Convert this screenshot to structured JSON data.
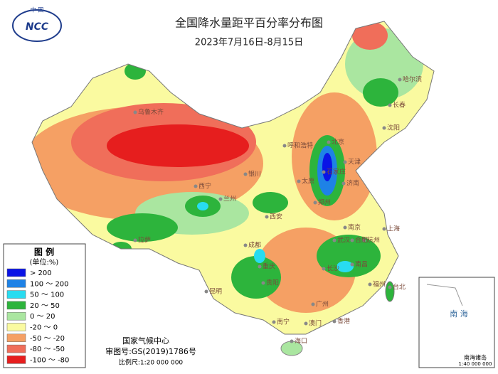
{
  "header": {
    "logo": "NCC",
    "logo_top": "中 国",
    "title": "全国降水量距平百分率分布图",
    "subtitle": "2023年7月16日-8月15日"
  },
  "legend": {
    "title": "图 例",
    "unit": "(单位:%)",
    "items": [
      {
        "label": "> 200",
        "color": "#0a14e6"
      },
      {
        "label": "100 ～ 200",
        "color": "#1e82e6"
      },
      {
        "label": "50 ～ 100",
        "color": "#28dcf0"
      },
      {
        "label": "20 ～ 50",
        "color": "#2db43c"
      },
      {
        "label": "0 ～ 20",
        "color": "#aae6a0"
      },
      {
        "label": "-20 ～ 0",
        "color": "#fafaa0"
      },
      {
        "label": "-50 ～ -20",
        "color": "#f5a064"
      },
      {
        "label": "-80 ～ -50",
        "color": "#f06e5a"
      },
      {
        "label": "-100 ～ -80",
        "color": "#e61e1e"
      }
    ]
  },
  "footer": {
    "agency": "国家气候中心",
    "approval": "审图号:GS(2019)1786号",
    "scale": "比例尺:1:20 000 000"
  },
  "inset": {
    "sea": "南 海",
    "islands": "南海诸岛",
    "scale": "1:40 000 000"
  },
  "cities": [
    "乌鲁木齐",
    "拉萨",
    "西宁",
    "兰州",
    "银川",
    "呼和浩特",
    "北京",
    "天津",
    "石家庄",
    "太原",
    "济南",
    "郑州",
    "西安",
    "成都",
    "重庆",
    "贵阳",
    "昆明",
    "南宁",
    "广州",
    "海口",
    "长沙",
    "武汉",
    "南昌",
    "福州",
    "台北",
    "杭州",
    "上海",
    "南京",
    "合肥",
    "沈阳",
    "长春",
    "哈尔滨",
    "香港",
    "澳门"
  ]
}
